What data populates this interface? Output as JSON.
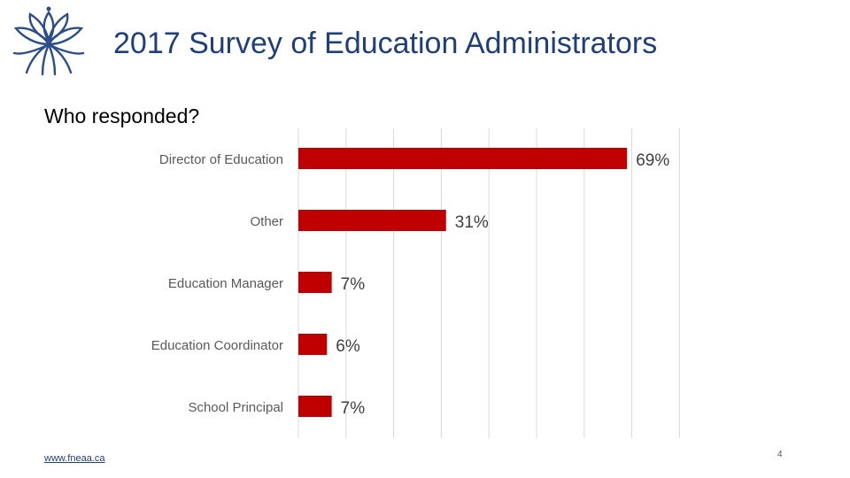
{
  "slide": {
    "title": "2017 Survey of Education Administrators",
    "subtitle": "Who responded?",
    "footer_link": "www.fneaa.ca",
    "page_number": "4"
  },
  "colors": {
    "title": "#1f3f7a",
    "bar": "#c00000",
    "logo": "#2b4d8c",
    "label": "#595959",
    "value_label": "#404040",
    "grid": "#d9d9d9"
  },
  "icons": {
    "logo": "lotus-logo-icon"
  },
  "chart_data": {
    "type": "bar",
    "orientation": "horizontal",
    "title": "",
    "xlabel": "",
    "ylabel": "",
    "xlim": [
      0,
      80
    ],
    "unit": "%",
    "grid": true,
    "categories": [
      "Director of Education",
      "Other",
      "Education Manager",
      "Education Coordinator",
      "School Principal"
    ],
    "values": [
      69,
      31,
      7,
      6,
      7
    ],
    "value_labels": [
      "69%",
      "31%",
      "7%",
      "6%",
      "7%"
    ]
  }
}
